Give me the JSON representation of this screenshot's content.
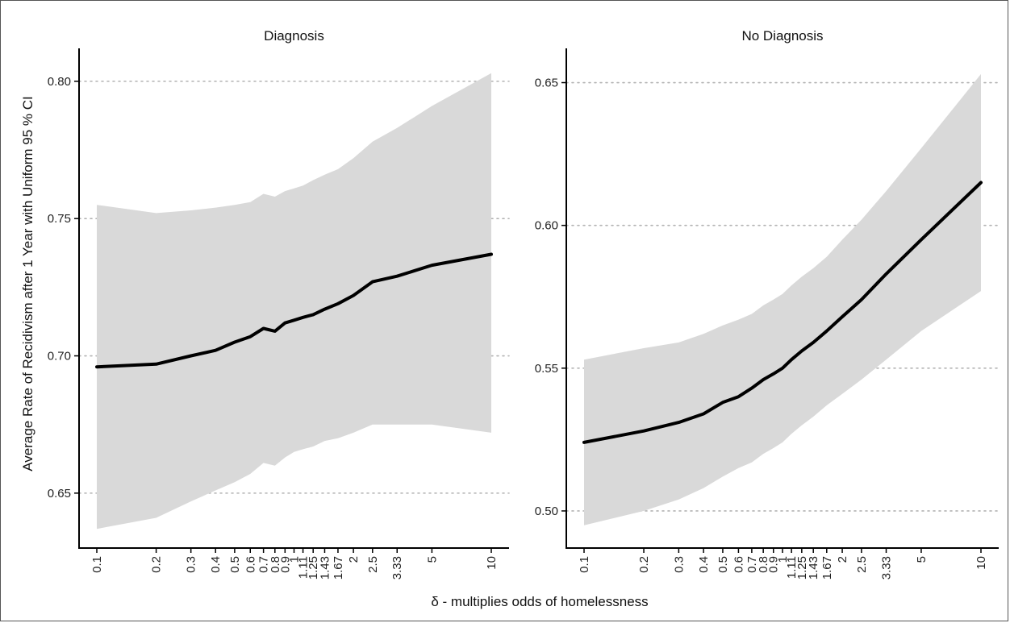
{
  "chart_data": {
    "type": "line",
    "xlabel": "δ - multiplies odds of homelessness",
    "ylabel": "Average Rate of Recidivism after 1 Year with Uniform 95 % CI",
    "x_scale": "log",
    "x": [
      0.1,
      0.2,
      0.3,
      0.4,
      0.5,
      0.6,
      0.7,
      0.8,
      0.9,
      1,
      1.11,
      1.25,
      1.43,
      1.67,
      2,
      2.5,
      3.33,
      5,
      10
    ],
    "x_tick_labels": [
      "0.1",
      "0.2",
      "0.3",
      "0.4",
      "0.5",
      "0.6",
      "0.7",
      "0.8",
      "0.9",
      "1",
      "1.11",
      "1.25",
      "1.43",
      "1.67",
      "2",
      "2.5",
      "3.33",
      "5",
      "10"
    ],
    "grid": "horizontal dotted",
    "colors": {
      "line": "#000000",
      "ribbon": "#d9d9d9",
      "grid": "#b3b3b3",
      "axis": "#000000"
    },
    "panels": [
      {
        "title": "Diagnosis",
        "ylim": [
          0.63,
          0.812
        ],
        "y_ticks": [
          0.65,
          0.7,
          0.75,
          0.8
        ],
        "y_tick_labels": [
          "0.65",
          "0.70",
          "0.75",
          "0.80"
        ],
        "estimate": [
          0.696,
          0.697,
          0.7,
          0.702,
          0.705,
          0.707,
          0.71,
          0.709,
          0.712,
          0.713,
          0.714,
          0.715,
          0.717,
          0.719,
          0.722,
          0.727,
          0.729,
          0.733,
          0.737
        ],
        "lower": [
          0.637,
          0.641,
          0.647,
          0.651,
          0.654,
          0.657,
          0.661,
          0.66,
          0.663,
          0.665,
          0.666,
          0.667,
          0.669,
          0.67,
          0.672,
          0.675,
          0.675,
          0.675,
          0.672
        ],
        "upper": [
          0.755,
          0.752,
          0.753,
          0.754,
          0.755,
          0.756,
          0.759,
          0.758,
          0.76,
          0.761,
          0.762,
          0.764,
          0.766,
          0.768,
          0.772,
          0.778,
          0.783,
          0.791,
          0.803
        ]
      },
      {
        "title": "No Diagnosis",
        "ylim": [
          0.487,
          0.662
        ],
        "y_ticks": [
          0.5,
          0.55,
          0.6,
          0.65
        ],
        "y_tick_labels": [
          "0.50",
          "0.55",
          "0.60",
          "0.65"
        ],
        "estimate": [
          0.524,
          0.528,
          0.531,
          0.534,
          0.538,
          0.54,
          0.543,
          0.546,
          0.548,
          0.55,
          0.553,
          0.556,
          0.559,
          0.563,
          0.568,
          0.574,
          0.583,
          0.595,
          0.615
        ],
        "lower": [
          0.495,
          0.5,
          0.504,
          0.508,
          0.512,
          0.515,
          0.517,
          0.52,
          0.522,
          0.524,
          0.527,
          0.53,
          0.533,
          0.537,
          0.541,
          0.546,
          0.553,
          0.563,
          0.577
        ],
        "upper": [
          0.553,
          0.557,
          0.559,
          0.562,
          0.565,
          0.567,
          0.569,
          0.572,
          0.574,
          0.576,
          0.579,
          0.582,
          0.585,
          0.589,
          0.595,
          0.602,
          0.612,
          0.627,
          0.653
        ]
      }
    ]
  }
}
